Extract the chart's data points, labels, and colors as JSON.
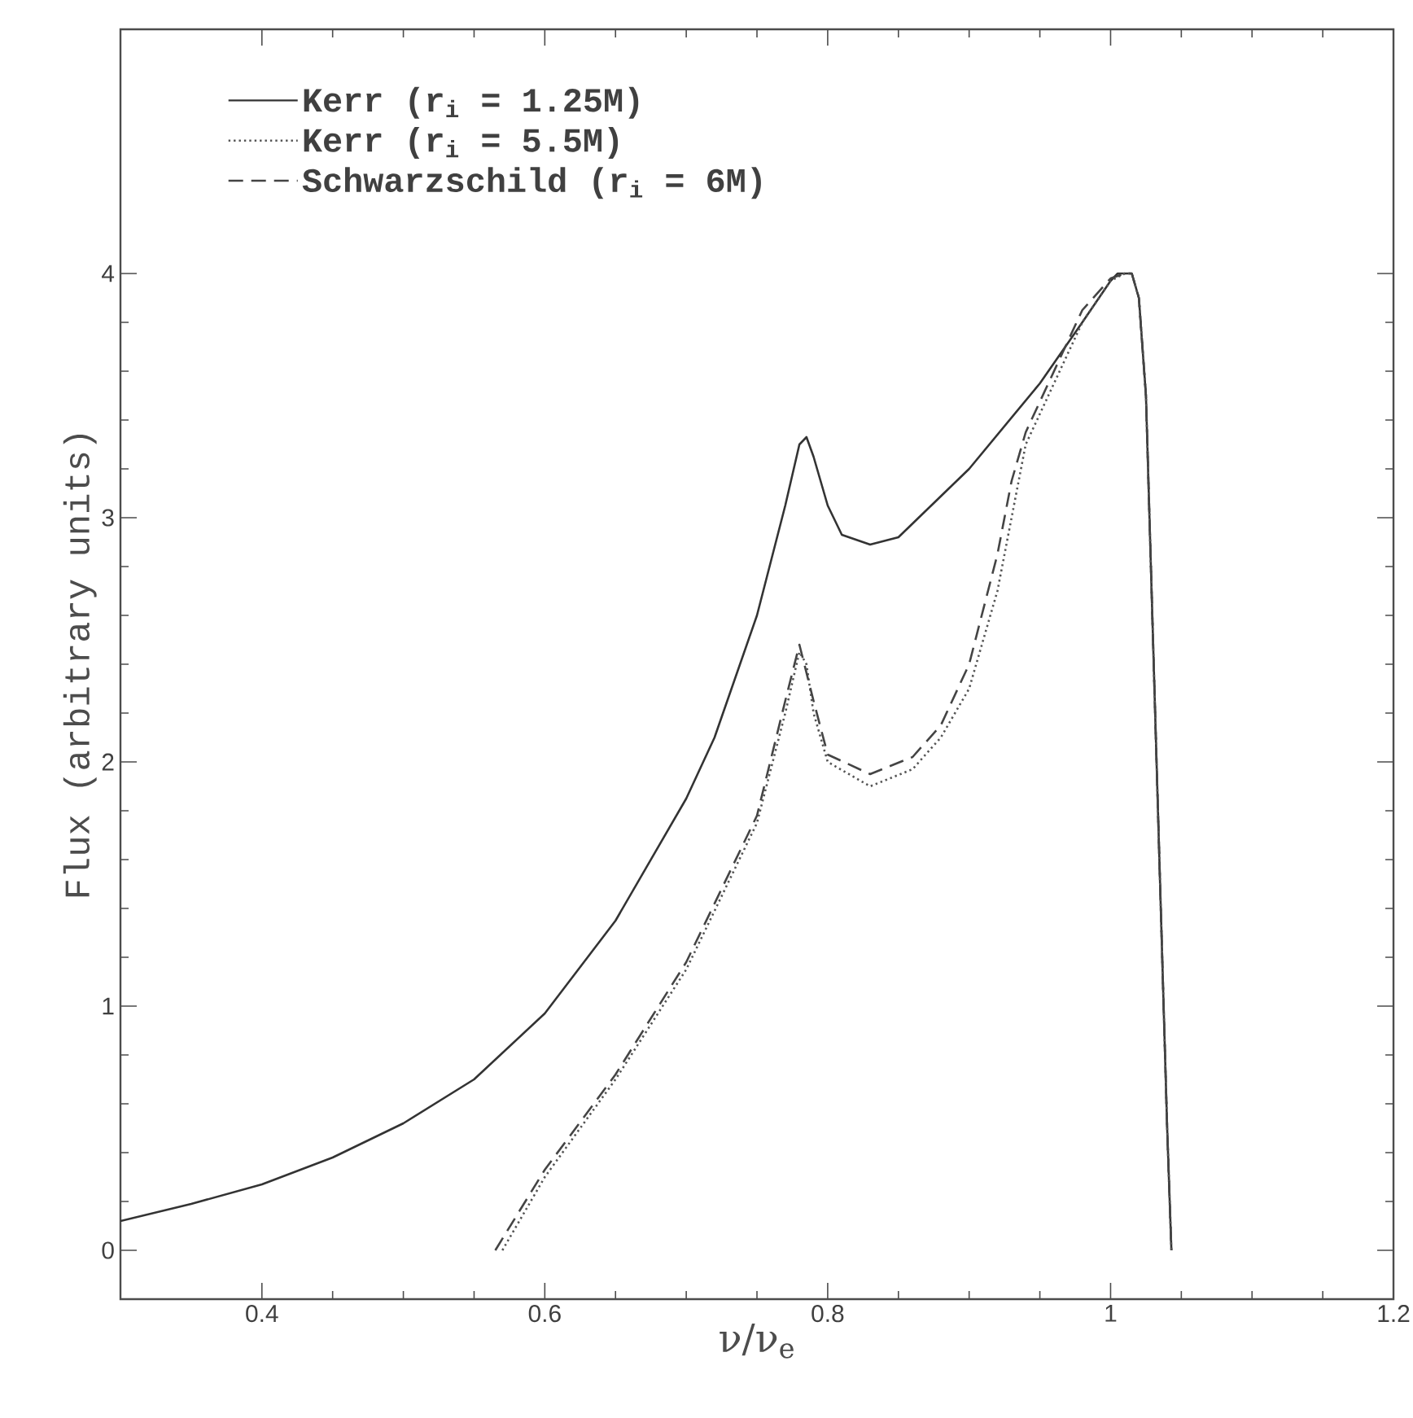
{
  "chart_data": {
    "type": "line",
    "xlabel": "ν/ν$_{e}$",
    "ylabel": "Flux  (arbitrary units)",
    "xlim": [
      0.3,
      1.2
    ],
    "ylim": [
      -0.2,
      5
    ],
    "xticks": [
      0.4,
      0.6,
      0.8,
      1,
      1.2
    ],
    "yticks": [
      0,
      1,
      2,
      3,
      4
    ],
    "grid": false,
    "legend": "top left",
    "marker": "none",
    "series": [
      {
        "name": "Kerr (r$_{i}$ = 1.25M)",
        "color": "#333333",
        "line_style": "solid",
        "x": [
          0.3,
          0.35,
          0.4,
          0.45,
          0.5,
          0.55,
          0.6,
          0.65,
          0.7,
          0.72,
          0.75,
          0.77,
          0.78,
          0.785,
          0.79,
          0.8,
          0.81,
          0.83,
          0.85,
          0.9,
          0.95,
          0.98,
          1.0,
          1.005,
          1.015,
          1.02,
          1.025,
          1.03,
          1.035,
          1.04,
          1.043
        ],
        "values": [
          0.12,
          0.19,
          0.27,
          0.38,
          0.52,
          0.7,
          0.97,
          1.35,
          1.85,
          2.1,
          2.6,
          3.05,
          3.3,
          3.33,
          3.25,
          3.05,
          2.93,
          2.89,
          2.92,
          3.2,
          3.55,
          3.8,
          3.97,
          4.0,
          4.0,
          3.9,
          3.5,
          2.5,
          1.5,
          0.5,
          0.0
        ]
      },
      {
        "name": "Kerr (r$_{i}$ = 5.5M)",
        "color": "#555555",
        "line_style": "dotted",
        "x": [
          0.57,
          0.6,
          0.65,
          0.7,
          0.75,
          0.77,
          0.78,
          0.785,
          0.79,
          0.8,
          0.83,
          0.86,
          0.88,
          0.9,
          0.92,
          0.93,
          0.94,
          0.96,
          0.98,
          1.0,
          1.01,
          1.015,
          1.02,
          1.025,
          1.03,
          1.035,
          1.04,
          1.043
        ],
        "values": [
          0.0,
          0.3,
          0.7,
          1.15,
          1.75,
          2.2,
          2.45,
          2.4,
          2.2,
          2.0,
          1.9,
          1.97,
          2.1,
          2.3,
          2.7,
          3.0,
          3.3,
          3.55,
          3.8,
          3.97,
          4.0,
          4.0,
          3.9,
          3.5,
          2.5,
          1.5,
          0.5,
          0.0
        ]
      },
      {
        "name": "Schwarzschild (r$_{i}$ = 6M)",
        "color": "#444444",
        "line_style": "dashed",
        "x": [
          0.565,
          0.6,
          0.65,
          0.7,
          0.75,
          0.77,
          0.78,
          0.79,
          0.8,
          0.83,
          0.86,
          0.88,
          0.9,
          0.92,
          0.93,
          0.94,
          0.96,
          0.98,
          1.0,
          1.01,
          1.015,
          1.02,
          1.025,
          1.03,
          1.035,
          1.04,
          1.043
        ],
        "values": [
          0.0,
          0.33,
          0.72,
          1.18,
          1.78,
          2.25,
          2.48,
          2.25,
          2.03,
          1.95,
          2.02,
          2.15,
          2.4,
          2.85,
          3.15,
          3.35,
          3.6,
          3.85,
          3.98,
          4.0,
          4.0,
          3.9,
          3.5,
          2.5,
          1.5,
          0.5,
          0.0
        ]
      }
    ]
  }
}
